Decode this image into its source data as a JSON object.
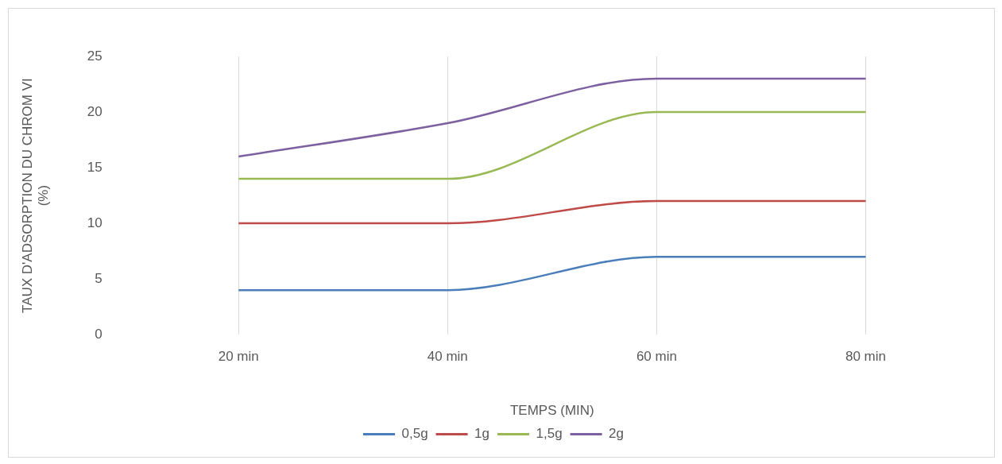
{
  "chart_data": {
    "type": "line",
    "xlabel": "TEMPS (MIN)",
    "ylabel": "TAUX D'ADSORPTION DU CHROM VI (%)",
    "categories": [
      "20 min",
      "40 min",
      "60 min",
      "80 min"
    ],
    "series": [
      {
        "name": "0,5g",
        "color": "#4a7ebb",
        "values": [
          4,
          4,
          7,
          7
        ]
      },
      {
        "name": "1g",
        "color": "#be4b48",
        "values": [
          10,
          10,
          12,
          12
        ]
      },
      {
        "name": "1,5g",
        "color": "#98b954",
        "values": [
          14,
          14,
          20,
          20
        ]
      },
      {
        "name": "2g",
        "color": "#7d60a0",
        "values": [
          16,
          19,
          23,
          23
        ]
      }
    ],
    "ylim": [
      0,
      25
    ],
    "yticks": [
      0,
      5,
      10,
      15,
      20,
      25
    ],
    "grid": "x",
    "legend": "bottom",
    "marker": "none",
    "line_style": "solid"
  }
}
